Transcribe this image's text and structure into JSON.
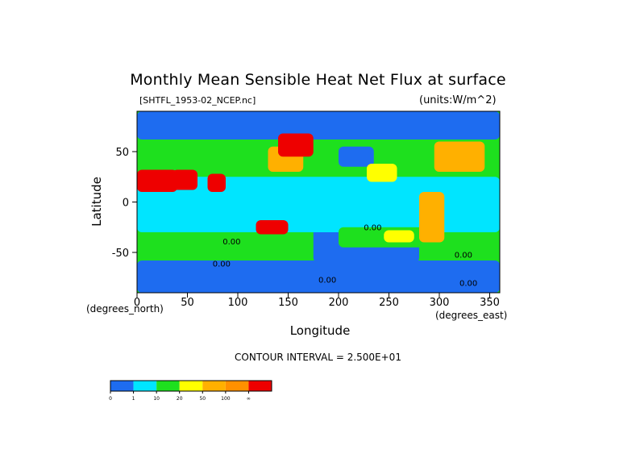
{
  "chart_data": {
    "type": "heatmap",
    "title": "Monthly Mean Sensible Heat Net Flux at surface",
    "subtitle_left": "[SHTFL_1953-02_NCEP.nc]",
    "subtitle_right": "(units:W/m^2)",
    "xlabel": "Longitude",
    "ylabel": "Latitude",
    "x_unit": "(degrees_east)",
    "y_unit": "(degrees_north)",
    "xlim": [
      0,
      360
    ],
    "ylim": [
      -90,
      90
    ],
    "x_ticks": [
      0,
      50,
      100,
      150,
      200,
      250,
      300,
      350
    ],
    "y_ticks": [
      50,
      0,
      -50
    ],
    "contour_interval_text": "CONTOUR INTERVAL = 2.500E+01",
    "contour_labels": [
      "0.00",
      "0.00",
      "0.00",
      "0.00",
      "0.00",
      "0.00"
    ],
    "colorbar": {
      "levels": [
        "0",
        "1",
        "10",
        "20",
        "50",
        "100",
        "∞"
      ],
      "colors": [
        "#1e6cf0",
        "#00e5ff",
        "#1ee01e",
        "#ffff00",
        "#ffb000",
        "#ff9000",
        "#ee0000"
      ]
    },
    "regions": [
      {
        "name": "polar-north",
        "lon": [
          0,
          360
        ],
        "lat": [
          62,
          90
        ],
        "level": 0
      },
      {
        "name": "southern-ocean",
        "lon": [
          0,
          360
        ],
        "lat": [
          -90,
          -58
        ],
        "level": 0
      },
      {
        "name": "south-pacific-low",
        "lon": [
          175,
          280
        ],
        "lat": [
          -60,
          -25
        ],
        "level": 0
      },
      {
        "name": "north-pacific-low",
        "lon": [
          200,
          235
        ],
        "lat": [
          35,
          55
        ],
        "level": 0
      },
      {
        "name": "tropical-band",
        "lon": [
          0,
          360
        ],
        "lat": [
          -30,
          25
        ],
        "level": 1
      },
      {
        "name": "south-indian-green",
        "lon": [
          40,
          130
        ],
        "lat": [
          -48,
          -35
        ],
        "level": 2
      },
      {
        "name": "south-pacific-green",
        "lon": [
          200,
          290
        ],
        "lat": [
          -45,
          -25
        ],
        "level": 2
      },
      {
        "name": "north-pacific-yellow",
        "lon": [
          228,
          258
        ],
        "lat": [
          20,
          38
        ],
        "level": 3
      },
      {
        "name": "south-pacific-yellow",
        "lon": [
          245,
          275
        ],
        "lat": [
          -40,
          -28
        ],
        "level": 3
      },
      {
        "name": "north-atlantic-orange",
        "lon": [
          295,
          345
        ],
        "lat": [
          30,
          60
        ],
        "level": 4
      },
      {
        "name": "kuroshio-orange",
        "lon": [
          130,
          165
        ],
        "lat": [
          30,
          55
        ],
        "level": 4
      },
      {
        "name": "sahara-red",
        "lon": [
          0,
          40
        ],
        "lat": [
          10,
          32
        ],
        "level": 6
      },
      {
        "name": "middle-east-red",
        "lon": [
          35,
          60
        ],
        "lat": [
          12,
          32
        ],
        "level": 6
      },
      {
        "name": "india-red",
        "lon": [
          70,
          88
        ],
        "lat": [
          10,
          28
        ],
        "level": 6
      },
      {
        "name": "australia-red",
        "lon": [
          118,
          150
        ],
        "lat": [
          -32,
          -18
        ],
        "level": 6
      },
      {
        "name": "siberia-red",
        "lon": [
          140,
          175
        ],
        "lat": [
          45,
          68
        ],
        "level": 6
      },
      {
        "name": "americas-orange",
        "lon": [
          280,
          305
        ],
        "lat": [
          -40,
          10
        ],
        "level": 4
      }
    ]
  }
}
